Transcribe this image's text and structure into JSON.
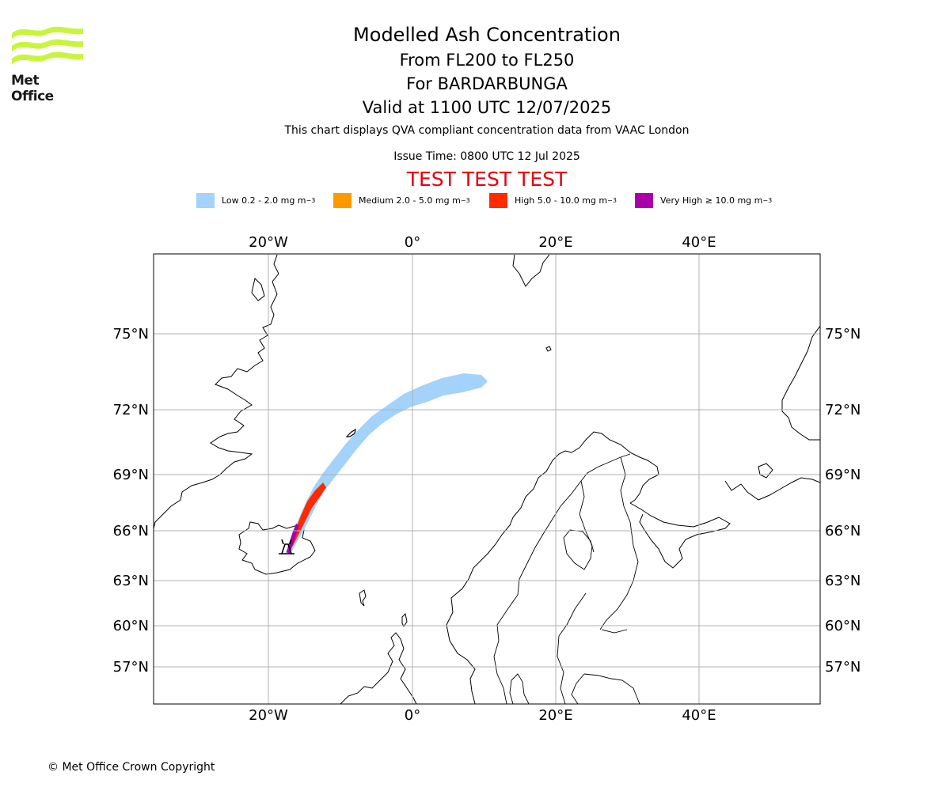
{
  "logo": {
    "text": "Met Office"
  },
  "title": {
    "line1": "Modelled Ash Concentration",
    "line2": "From FL200 to FL250",
    "line3": "For BARDARBUNGA",
    "line4": "Valid at 1100 UTC 12/07/2025"
  },
  "subtitle": "This chart displays QVA compliant concentration data from VAAC London",
  "issue_time": "Issue Time: 0800 UTC 12 Jul 2025",
  "test_banner": "TEST TEST TEST",
  "legend": [
    {
      "label": "Low 0.2 - 2.0 mg m",
      "exp": "−3",
      "color": "#a3d2fa"
    },
    {
      "label": "Medium 2.0 - 5.0 mg m",
      "exp": "−3",
      "color": "#fe9902"
    },
    {
      "label": "High 5.0 - 10.0 mg m",
      "exp": "−3",
      "color": "#ff2a00"
    },
    {
      "label": "Very High  ≥  10.0 mg m",
      "exp": "−3",
      "color": "#aa00aa"
    }
  ],
  "map": {
    "lon_labels": [
      "20°W",
      "0°",
      "20°E",
      "40°E"
    ],
    "lat_labels": [
      "75°N",
      "72°N",
      "69°N",
      "66°N",
      "63°N",
      "60°N",
      "57°N"
    ],
    "volcano_marker": "volcano-icon"
  },
  "copyright": "© Met Office Crown Copyright"
}
